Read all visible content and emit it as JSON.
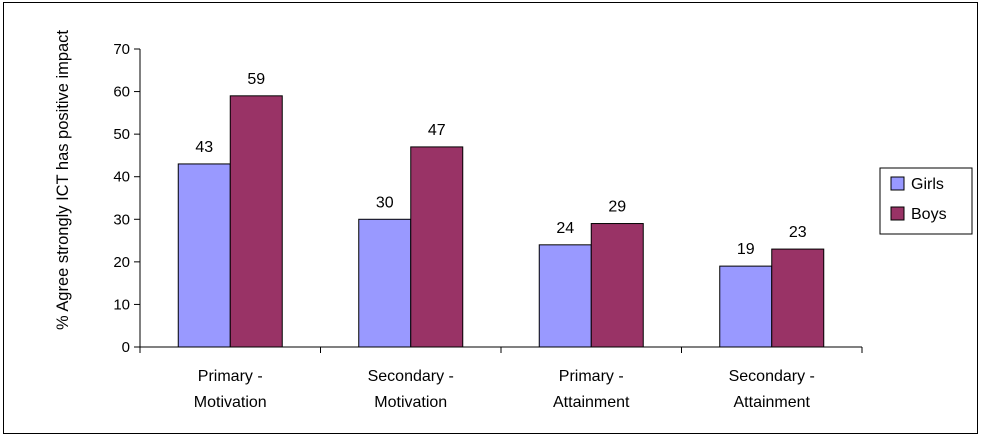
{
  "chart_data": {
    "type": "bar",
    "title": "",
    "xlabel": "",
    "ylabel": "% Agree strongly ICT has positive impact",
    "ylim": [
      0,
      70
    ],
    "yticks": [
      0,
      10,
      20,
      30,
      40,
      50,
      60,
      70
    ],
    "categories": [
      [
        "Primary -",
        "Motivation"
      ],
      [
        "Secondary -",
        "Motivation"
      ],
      [
        "Primary -",
        "Attainment"
      ],
      [
        "Secondary -",
        "Attainment"
      ]
    ],
    "series": [
      {
        "name": "Girls",
        "color": "#9999ff",
        "values": [
          43,
          30,
          24,
          19
        ],
        "labels": [
          "43",
          "30",
          "24",
          "19"
        ]
      },
      {
        "name": "Boys",
        "color": "#993366",
        "values": [
          59,
          47,
          29,
          23
        ],
        "labels": [
          "59",
          "47",
          "29",
          "23"
        ]
      }
    ],
    "legend_position": "right",
    "grid": false
  }
}
